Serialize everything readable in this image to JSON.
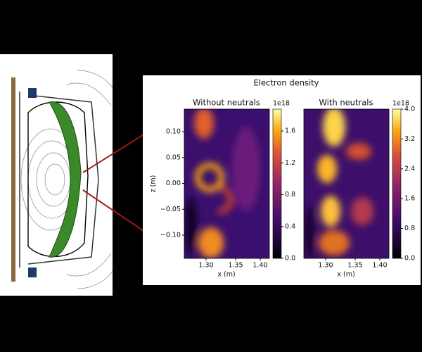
{
  "figure": {
    "title": "Electron density",
    "panels": [
      {
        "title": "Without neutrals",
        "multiplier": "1e18",
        "colorbar_ticks": [
          "0.0",
          "0.4",
          "0.8",
          "1.2",
          "1.6"
        ],
        "x_ticks": [
          "1.30",
          "1.35",
          "1.40"
        ],
        "x_label": "x (m)",
        "y_ticks": [
          "−0.10",
          "−0.05",
          "0.00",
          "0.05",
          "0.10"
        ],
        "y_label": "z (m)"
      },
      {
        "title": "With neutrals",
        "multiplier": "1e18",
        "colorbar_ticks": [
          "0.0",
          "0.8",
          "1.6",
          "2.4",
          "3.2",
          "4.0"
        ],
        "x_ticks": [
          "1.30",
          "1.35",
          "1.40"
        ],
        "x_label": "x (m)"
      }
    ]
  }
}
